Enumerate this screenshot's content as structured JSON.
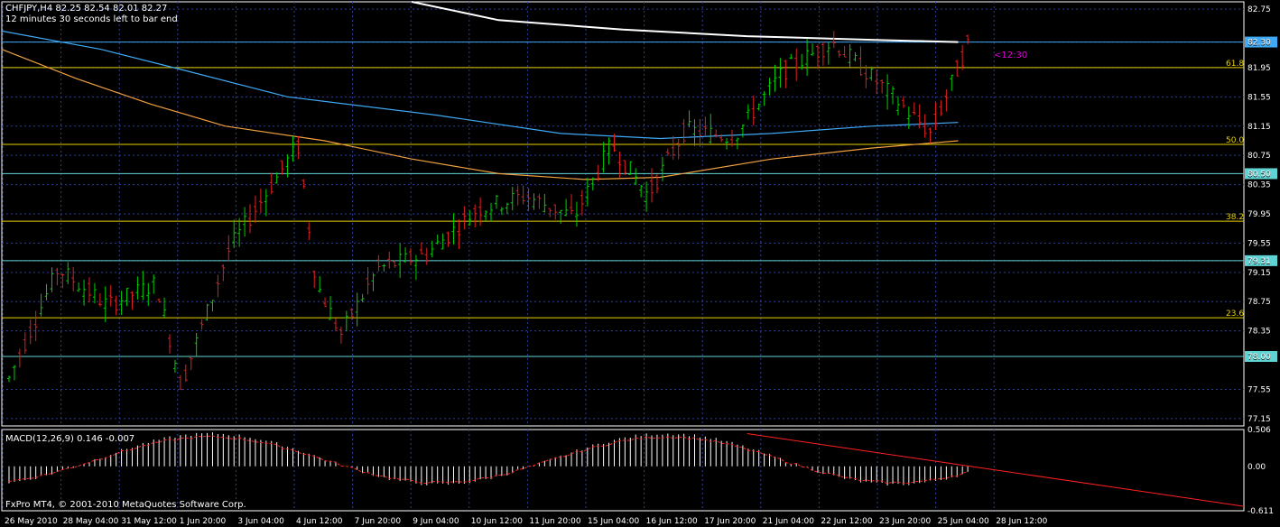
{
  "chart_data": [
    {
      "type": "ohlc-bar",
      "header": "CHFJPY,H4  82.25 82.54 82.01 82.27",
      "timer_text": "12 minutes 30 seconds left to bar end",
      "countdown_label": "<12:30",
      "y_ticks": [
        "82.75",
        "82.30",
        "81.95",
        "81.55",
        "81.15",
        "80.75",
        "80.50",
        "80.35",
        "79.95",
        "79.55",
        "79.31",
        "79.15",
        "78.75",
        "78.35",
        "78.00",
        "77.55",
        "77.15"
      ],
      "ylim": [
        77.05,
        82.85
      ],
      "x_ticks": [
        "26 May 2010",
        "28 May 04:00",
        "31 May 12:00",
        "1 Jun 20:00",
        "3 Jun 04:00",
        "4 Jun 12:00",
        "7 Jun 20:00",
        "9 Jun 04:00",
        "10 Jun 12:00",
        "11 Jun 20:00",
        "15 Jun 04:00",
        "16 Jun 12:00",
        "17 Jun 20:00",
        "21 Jun 04:00",
        "22 Jun 12:00",
        "23 Jun 20:00",
        "25 Jun 04:00",
        "28 Jun 12:00"
      ],
      "current_price": "82.30",
      "horizontal_levels": [
        {
          "value": 82.3,
          "label": "82.30",
          "color": "#3fa9f5",
          "boxed": true
        },
        {
          "value": 81.95,
          "label": "61.8",
          "color": "#e8d000",
          "boxed": false
        },
        {
          "value": 80.9,
          "label": "50.0",
          "color": "#e8d000",
          "boxed": false
        },
        {
          "value": 80.5,
          "label": "80.50",
          "color": "#5fd3d3",
          "boxed": true
        },
        {
          "value": 79.85,
          "label": "38.2",
          "color": "#e8d000",
          "boxed": false
        },
        {
          "value": 79.31,
          "label": "79.31",
          "color": "#5fd3d3",
          "boxed": true
        },
        {
          "value": 78.53,
          "label": "23.6",
          "color": "#e8d000",
          "boxed": false
        },
        {
          "value": 78.0,
          "label": "78.00",
          "color": "#5fd3d3",
          "boxed": true
        }
      ],
      "ohlc_seed": {
        "start": 77.7,
        "end": 82.27,
        "bars": 180
      },
      "moving_averages": [
        {
          "color": "#ffffff",
          "points": [
            [
              0.33,
              82.85
            ],
            [
              0.4,
              82.6
            ],
            [
              0.5,
              82.47
            ],
            [
              0.6,
              82.38
            ],
            [
              0.7,
              82.33
            ],
            [
              0.77,
              82.3
            ]
          ]
        },
        {
          "color": "#3fa9f5",
          "points": [
            [
              0.0,
              82.45
            ],
            [
              0.08,
              82.2
            ],
            [
              0.15,
              81.9
            ],
            [
              0.23,
              81.55
            ],
            [
              0.35,
              81.3
            ],
            [
              0.45,
              81.05
            ],
            [
              0.53,
              80.98
            ],
            [
              0.62,
              81.05
            ],
            [
              0.7,
              81.15
            ],
            [
              0.77,
              81.2
            ]
          ]
        },
        {
          "color": "#f0a040",
          "points": [
            [
              0.0,
              82.2
            ],
            [
              0.06,
              81.8
            ],
            [
              0.12,
              81.45
            ],
            [
              0.18,
              81.15
            ],
            [
              0.26,
              80.95
            ],
            [
              0.33,
              80.7
            ],
            [
              0.4,
              80.5
            ],
            [
              0.47,
              80.42
            ],
            [
              0.53,
              80.45
            ],
            [
              0.62,
              80.7
            ],
            [
              0.7,
              80.85
            ],
            [
              0.77,
              80.95
            ]
          ]
        }
      ]
    },
    {
      "type": "histogram",
      "label": "MACD(12,26,9) 0.146 -0.007",
      "y_ticks": [
        "0.506",
        "0.00",
        "-0.611"
      ],
      "ylim": [
        -0.611,
        0.506
      ],
      "signal_color": "#ff2020",
      "signal_line_end": -0.55
    }
  ],
  "copyright": "FxPro MT4, © 2001-2010 MetaQuotes Software Corp."
}
